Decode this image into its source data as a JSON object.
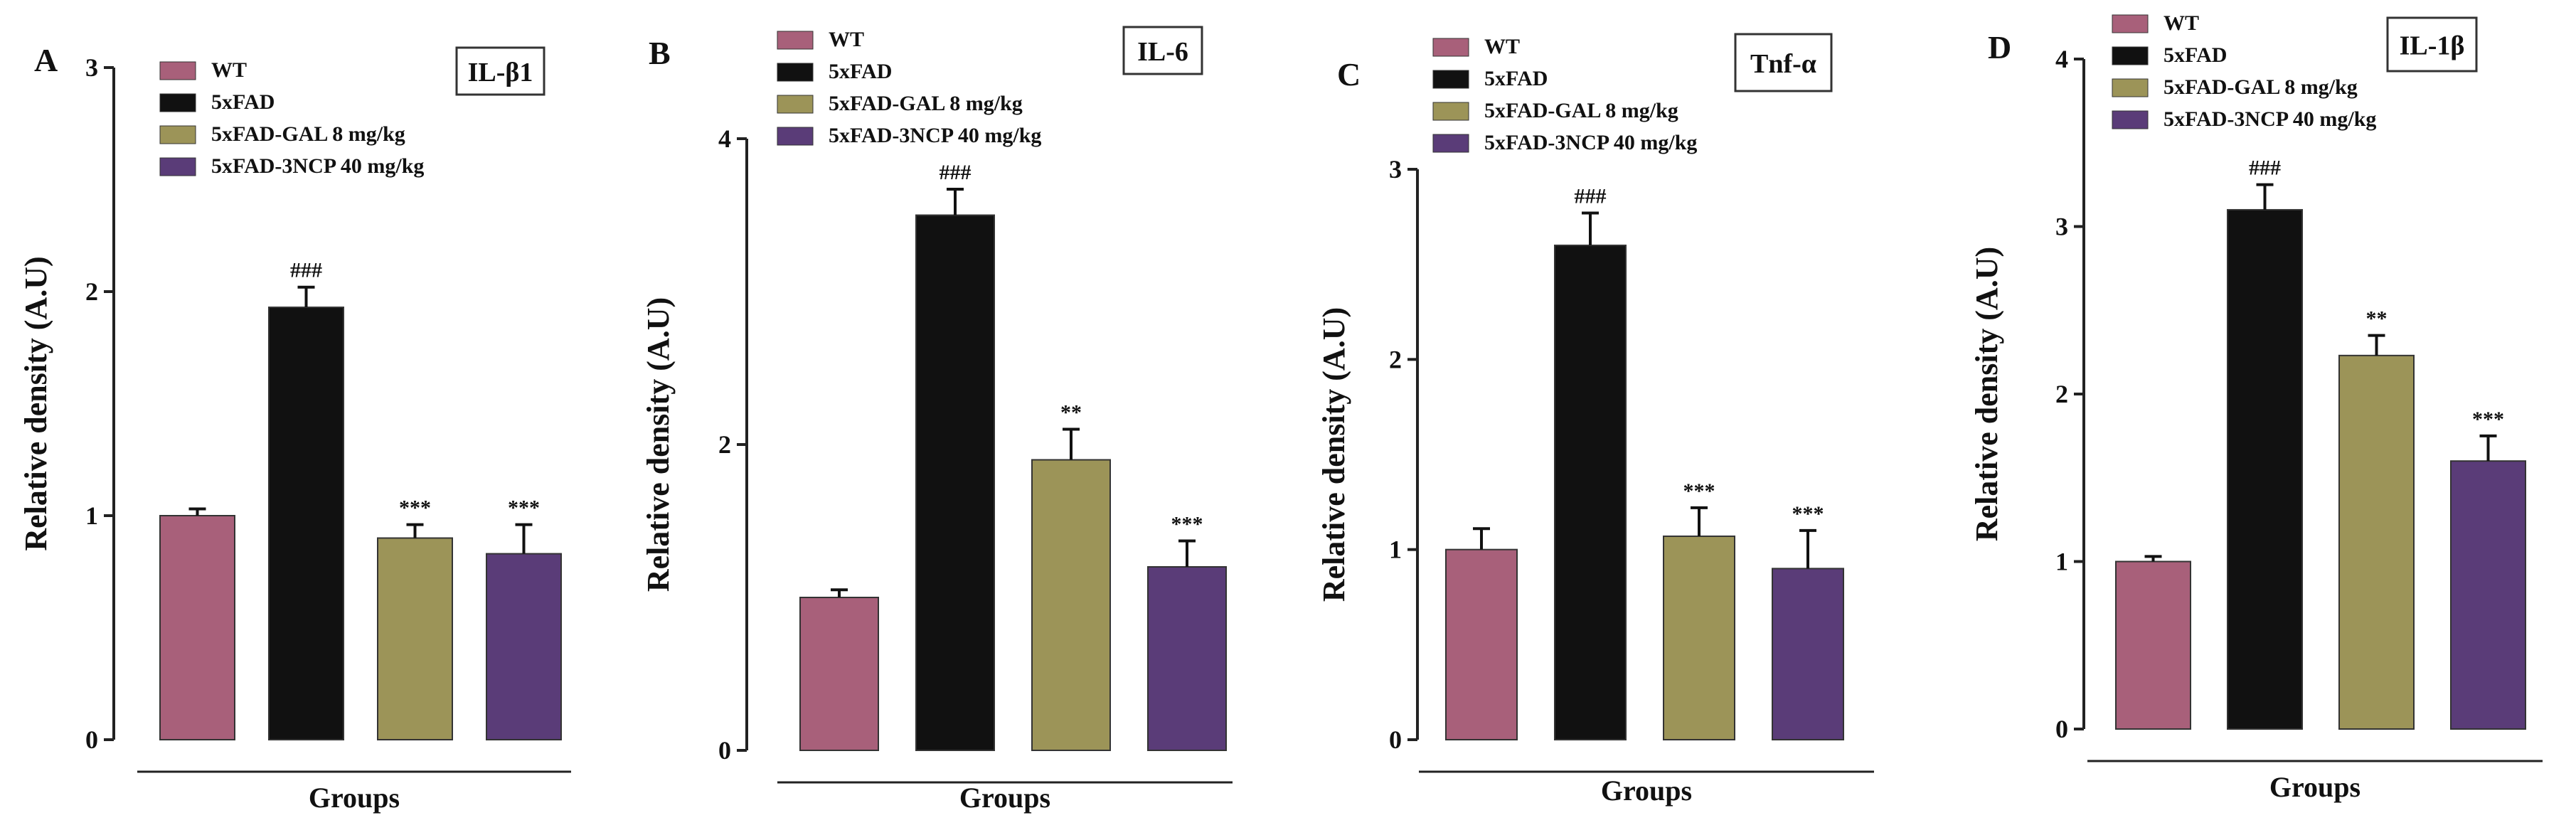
{
  "colors": {
    "WT": "#a8607a",
    "5xFAD": "#111111",
    "5xFAD-GAL 8 mg/kg": "#9c9458",
    "5xFAD-3NCP 40 mg/kg": "#5a3c78"
  },
  "chart_data": [
    {
      "type": "bar",
      "panel_letter": "A",
      "title": "IL-β1",
      "ylabel": "Relative density (A.U)",
      "xlabel": "Groups",
      "ylim": [
        0,
        3
      ],
      "yticks": [
        "0",
        "1",
        "2",
        "3"
      ],
      "categories": [
        "WT",
        "5xFAD",
        "5xFAD-GAL 8 mg/kg",
        "5xFAD-3NCP 40 mg/kg"
      ],
      "legend": [
        "WT",
        "5xFAD",
        "5xFAD-GAL 8 mg/kg",
        "5xFAD-3NCP 40 mg/kg"
      ],
      "values": [
        1.0,
        1.93,
        0.9,
        0.83
      ],
      "errors": [
        0.03,
        0.09,
        0.06,
        0.13
      ],
      "annotations": [
        "",
        "###",
        "***",
        "***"
      ]
    },
    {
      "type": "bar",
      "panel_letter": "B",
      "title": "IL-6",
      "ylabel": "Relative density (A.U)",
      "xlabel": "Groups",
      "ylim": [
        0,
        4
      ],
      "yticks": [
        "0",
        "2",
        "4"
      ],
      "categories": [
        "WT",
        "5xFAD",
        "5xFAD-GAL 8 mg/kg",
        "5xFAD-3NCP 40 mg/kg"
      ],
      "legend": [
        "WT",
        "5xFAD",
        "5xFAD-GAL 8 mg/kg",
        "5xFAD-3NCP 40 mg/kg"
      ],
      "values": [
        1.0,
        3.5,
        1.9,
        1.2
      ],
      "errors": [
        0.05,
        0.17,
        0.2,
        0.17
      ],
      "annotations": [
        "",
        "###",
        "**",
        "***"
      ]
    },
    {
      "type": "bar",
      "panel_letter": "C",
      "title": "Tnf-α",
      "ylabel": "Relative density (A.U)",
      "xlabel": "Groups",
      "ylim": [
        0,
        3
      ],
      "yticks": [
        "0",
        "1",
        "2",
        "3"
      ],
      "categories": [
        "WT",
        "5xFAD",
        "5xFAD-GAL 8 mg/kg",
        "5xFAD-3NCP 40 mg/kg"
      ],
      "legend": [
        "WT",
        "5xFAD",
        "5xFAD-GAL 8 mg/kg",
        "5xFAD-3NCP 40 mg/kg"
      ],
      "values": [
        1.0,
        2.6,
        1.07,
        0.9
      ],
      "errors": [
        0.11,
        0.17,
        0.15,
        0.2
      ],
      "annotations": [
        "",
        "###",
        "***",
        "***"
      ]
    },
    {
      "type": "bar",
      "panel_letter": "D",
      "title": "IL-1β",
      "ylabel": "Relative density (A.U)",
      "xlabel": "Groups",
      "ylim": [
        0,
        4
      ],
      "yticks": [
        "0",
        "1",
        "2",
        "3",
        "4"
      ],
      "categories": [
        "WT",
        "5xFAD",
        "5xFAD-GAL 8 mg/kg",
        "5xFAD-3NCP 40 mg/kg"
      ],
      "legend": [
        "WT",
        "5xFAD",
        "5xFAD-GAL 8 mg/kg",
        "5xFAD-3NCP 40 mg/kg"
      ],
      "values": [
        1.0,
        3.1,
        2.23,
        1.6
      ],
      "errors": [
        0.03,
        0.15,
        0.12,
        0.15
      ],
      "annotations": [
        "",
        "###",
        "**",
        "***"
      ]
    }
  ]
}
